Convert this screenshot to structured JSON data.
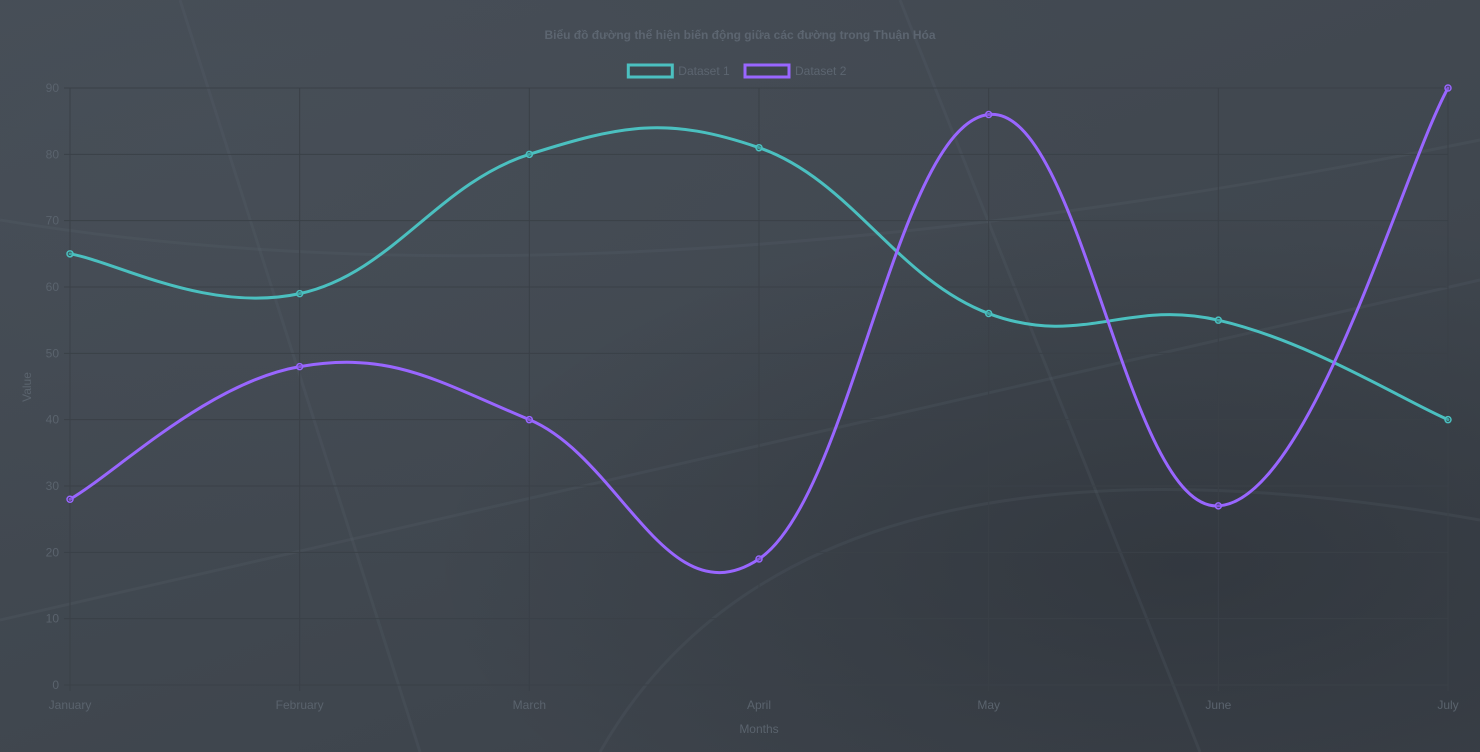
{
  "chart_data": {
    "type": "line",
    "title": "Biểu đồ đường thể hiện biến động giữa các đường trong Thuận Hóa",
    "xlabel": "Months",
    "ylabel": "Value",
    "categories": [
      "January",
      "February",
      "March",
      "April",
      "May",
      "June",
      "July"
    ],
    "ylim": [
      0,
      90
    ],
    "yticks": [
      0,
      10,
      20,
      30,
      40,
      50,
      60,
      70,
      80,
      90
    ],
    "grid": true,
    "legend_position": "top-center",
    "series": [
      {
        "name": "Dataset 1",
        "color": "#4bc0c0",
        "values": [
          65,
          59,
          80,
          81,
          56,
          55,
          40
        ]
      },
      {
        "name": "Dataset 2",
        "color": "#9966ff",
        "values": [
          28,
          48,
          40,
          19,
          86,
          27,
          90
        ]
      }
    ]
  }
}
